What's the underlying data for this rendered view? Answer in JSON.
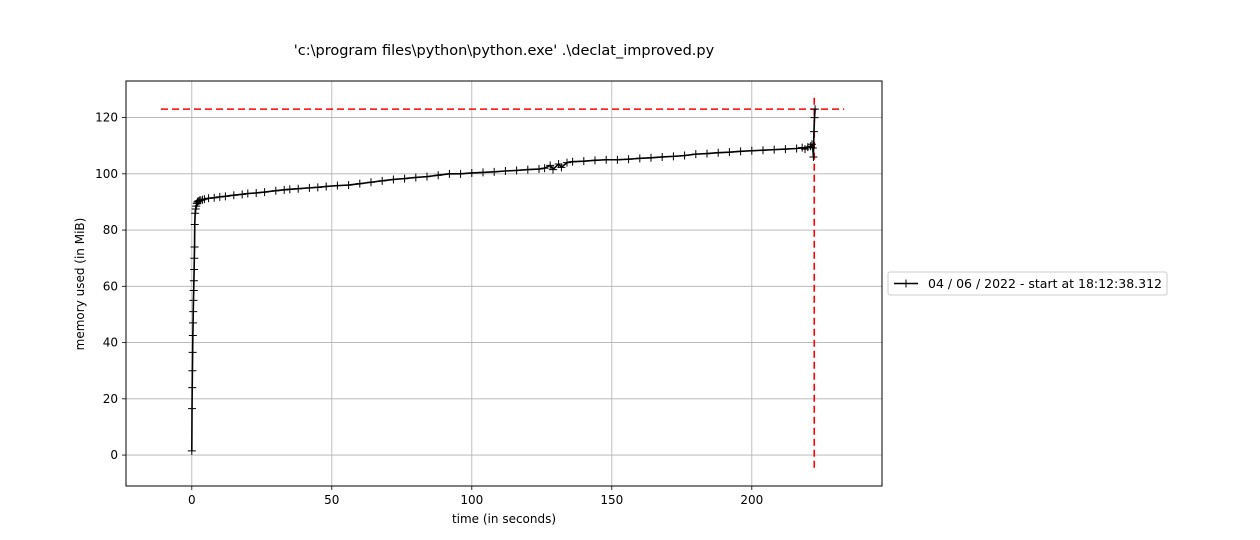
{
  "chart_data": {
    "type": "line",
    "title": "'c:\\program files\\python\\python.exe' .\\declat_improved.py",
    "xlabel": "time (in seconds)",
    "ylabel": "memory used (in MiB)",
    "xlim": [
      -23.5,
      246.5
    ],
    "ylim": [
      -11,
      133
    ],
    "xticks": [
      0,
      50,
      100,
      150,
      200
    ],
    "yticks": [
      0,
      20,
      40,
      60,
      80,
      100,
      120
    ],
    "grid": true,
    "legend_position": "right",
    "series": [
      {
        "name": "04 / 06 / 2022 - start at 18:12:38.312",
        "color": "#000000",
        "marker": "+",
        "x": [
          0.0,
          0.08,
          0.15,
          0.22,
          0.3,
          0.38,
          0.45,
          0.52,
          0.6,
          0.68,
          0.75,
          0.83,
          0.9,
          0.98,
          1.05,
          1.2,
          1.4,
          1.6,
          1.8,
          2.0,
          2.3,
          2.7,
          3.2,
          3.8,
          4.5,
          6,
          8,
          10,
          12,
          15,
          18,
          20,
          23,
          26,
          30,
          33,
          35,
          38,
          42,
          45,
          48,
          52,
          56,
          60,
          64,
          68,
          72,
          76,
          80,
          84,
          88,
          92,
          96,
          100,
          104,
          108,
          112,
          116,
          120,
          124,
          126,
          128,
          129,
          131,
          132,
          134,
          136,
          140,
          144,
          148,
          152,
          156,
          160,
          164,
          168,
          172,
          176,
          180,
          184,
          188,
          192,
          196,
          200,
          204,
          208,
          212,
          216,
          218,
          219,
          220,
          221,
          221.5,
          221.8,
          222.0,
          222.2,
          222.4,
          222.6
        ],
        "y": [
          1.5,
          16.5,
          24,
          30,
          36.5,
          42.5,
          47,
          51,
          55,
          58.5,
          62,
          66,
          70,
          74,
          82,
          86,
          87.5,
          88.5,
          89.5,
          90,
          90.3,
          90.5,
          90.6,
          90.8,
          91,
          91.3,
          91.5,
          91.8,
          92,
          92.4,
          92.7,
          93,
          93.2,
          93.5,
          94,
          94.3,
          94.5,
          94.7,
          95,
          95.2,
          95.5,
          95.8,
          96,
          96.5,
          97,
          97.5,
          98,
          98.3,
          98.7,
          99,
          99.5,
          100,
          100,
          100.3,
          100.5,
          100.7,
          101,
          101.2,
          101.5,
          101.7,
          102,
          103,
          101.5,
          103.5,
          102.3,
          104,
          104.3,
          104.5,
          104.8,
          105,
          105,
          105.2,
          105.5,
          105.7,
          106,
          106.2,
          106.5,
          107,
          107.2,
          107.5,
          107.7,
          108,
          108.2,
          108.4,
          108.6,
          108.8,
          109,
          109.3,
          108.8,
          109.5,
          109.8,
          110.5,
          109.2,
          106.0,
          115,
          120,
          123
        ]
      }
    ],
    "annotations": [
      {
        "type": "hline",
        "y": 123,
        "xmin": -11,
        "xmax": 233,
        "color": "#ff0000",
        "style": "dashed"
      },
      {
        "type": "vline",
        "x": 222.3,
        "ymin": -4.5,
        "ymax": 128.5,
        "color": "#ff0000",
        "style": "dashed"
      }
    ]
  }
}
